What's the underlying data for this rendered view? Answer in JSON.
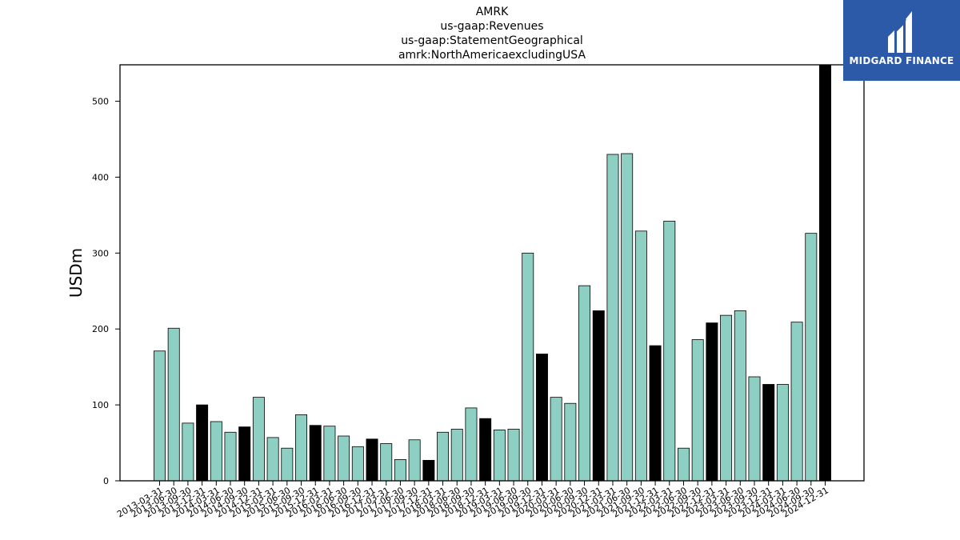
{
  "chart_data": {
    "type": "bar",
    "title_lines": [
      "AMRK",
      "us-gaap:Revenues",
      "us-gaap:StatementGeographical",
      "amrk:NorthAmericaexcludingUSA"
    ],
    "ylabel": "USDm",
    "xlabel": "",
    "ylim": [
      0,
      548
    ],
    "yticks": [
      0,
      100,
      200,
      300,
      400,
      500
    ],
    "grid": false,
    "colors": {
      "quarter": "#8ecfc3",
      "fiscal_year_end": "#000000",
      "edge": "#000000"
    },
    "categories": [
      "2013-03-31",
      "2013-06-30",
      "2013-09-30",
      "2013-12-31",
      "2014-03-31",
      "2014-06-30",
      "2014-09-30",
      "2014-12-31",
      "2015-03-31",
      "2015-06-30",
      "2015-09-30",
      "2015-12-31",
      "2016-03-31",
      "2016-06-30",
      "2016-09-30",
      "2016-12-31",
      "2017-03-31",
      "2017-06-30",
      "2017-09-30",
      "2017-12-31",
      "2018-03-31",
      "2018-06-30",
      "2018-09-30",
      "2018-12-31",
      "2019-03-31",
      "2019-06-30",
      "2019-09-30",
      "2019-12-31",
      "2020-03-31",
      "2020-06-30",
      "2020-09-30",
      "2020-12-31",
      "2021-03-31",
      "2021-06-30",
      "2021-09-30",
      "2021-12-31",
      "2022-03-31",
      "2022-06-30",
      "2022-09-30",
      "2022-12-31",
      "2023-03-31",
      "2023-06-30",
      "2023-09-30",
      "2023-12-31",
      "2024-03-31",
      "2024-06-30",
      "2024-09-30",
      "2024-12-31"
    ],
    "values": [
      171,
      201,
      76,
      100,
      78,
      64,
      71,
      110,
      57,
      43,
      87,
      73,
      72,
      59,
      45,
      55,
      49,
      28,
      54,
      27,
      64,
      68,
      96,
      82,
      67,
      68,
      300,
      167,
      110,
      102,
      257,
      224,
      430,
      431,
      329,
      178,
      342,
      43,
      186,
      208,
      218,
      224,
      137,
      127,
      127,
      209,
      326,
      548
    ],
    "highlight": [
      false,
      false,
      false,
      true,
      false,
      false,
      true,
      false,
      false,
      false,
      false,
      true,
      false,
      false,
      false,
      true,
      false,
      false,
      false,
      true,
      false,
      false,
      false,
      true,
      false,
      false,
      false,
      true,
      false,
      false,
      false,
      true,
      false,
      false,
      false,
      true,
      false,
      false,
      false,
      true,
      false,
      false,
      false,
      true,
      false,
      false,
      false,
      true
    ]
  },
  "logo": {
    "text": "MIDGARD FINANCE",
    "bg": "#2c5aa8"
  }
}
